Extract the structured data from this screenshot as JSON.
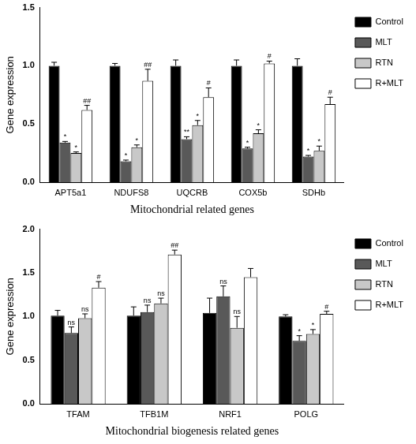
{
  "chart_data": [
    {
      "type": "bar",
      "y_label": "Gene expression",
      "x_label": "Mitochondrial related genes",
      "categories": [
        "APT5a1",
        "NDUFS8",
        "UQCRB",
        "COX5b",
        "SDHb"
      ],
      "series": [
        {
          "name": "Control",
          "color": "#000000",
          "values": [
            1.0,
            1.0,
            1.0,
            1.0,
            1.0
          ],
          "errors": [
            0.03,
            0.02,
            0.05,
            0.05,
            0.06
          ],
          "annotations": [
            null,
            null,
            null,
            null,
            null
          ]
        },
        {
          "name": "MLT",
          "color": "#595959",
          "values": [
            0.34,
            0.18,
            0.37,
            0.29,
            0.22
          ],
          "errors": [
            0.01,
            0.01,
            0.02,
            0.01,
            0.01
          ],
          "annotations": [
            "*",
            "*",
            "**",
            "*",
            "*"
          ]
        },
        {
          "name": "RTN",
          "color": "#c8c8c8",
          "values": [
            0.25,
            0.3,
            0.49,
            0.42,
            0.27
          ],
          "errors": [
            0.01,
            0.02,
            0.04,
            0.03,
            0.04
          ],
          "annotations": [
            "*",
            "*",
            "*",
            "*",
            "*"
          ]
        },
        {
          "name": "R+MLT",
          "color": "#ffffff",
          "values": [
            0.62,
            0.87,
            0.73,
            1.02,
            0.67
          ],
          "errors": [
            0.04,
            0.1,
            0.08,
            0.02,
            0.06
          ],
          "annotations": [
            "##",
            "##",
            "#",
            "#",
            "#"
          ]
        }
      ],
      "ylim": [
        0,
        1.5
      ],
      "yticks": [
        {
          "value": 0,
          "label": "0.0"
        },
        {
          "value": 0.5,
          "label": "0.5"
        },
        {
          "value": 1,
          "label": "1.0"
        },
        {
          "value": 1.5,
          "label": "1.5"
        }
      ],
      "grid": false,
      "legend": "right"
    },
    {
      "type": "bar",
      "y_label": "Gene expression",
      "x_label": "Mitochondrial biogenesis related genes",
      "categories": [
        "TFAM",
        "TFB1M",
        "NRF1",
        "POLG"
      ],
      "series": [
        {
          "name": "Control",
          "color": "#000000",
          "values": [
            1.01,
            1.01,
            1.04,
            1.0
          ],
          "errors": [
            0.06,
            0.1,
            0.17,
            0.02
          ],
          "annotations": [
            null,
            null,
            null,
            null
          ]
        },
        {
          "name": "MLT",
          "color": "#595959",
          "values": [
            0.81,
            1.05,
            1.23,
            0.72
          ],
          "errors": [
            0.07,
            0.08,
            0.12,
            0.06
          ],
          "annotations": [
            "ns",
            "ns",
            "ns",
            "*"
          ]
        },
        {
          "name": "RTN",
          "color": "#c8c8c8",
          "values": [
            0.98,
            1.15,
            0.87,
            0.8
          ],
          "errors": [
            0.05,
            0.06,
            0.13,
            0.05
          ],
          "annotations": [
            "ns",
            "ns",
            "ns",
            "*"
          ]
        },
        {
          "name": "R+MLT",
          "color": "#ffffff",
          "values": [
            1.33,
            1.71,
            1.45,
            1.03
          ],
          "errors": [
            0.07,
            0.05,
            0.1,
            0.03
          ],
          "annotations": [
            "#",
            "##",
            null,
            "#"
          ]
        }
      ],
      "ylim": [
        0,
        2
      ],
      "yticks": [
        {
          "value": 0,
          "label": "0.0"
        },
        {
          "value": 0.5,
          "label": "0.5"
        },
        {
          "value": 1,
          "label": "1.0"
        },
        {
          "value": 1.5,
          "label": "1.5"
        },
        {
          "value": 2,
          "label": "2.0"
        }
      ],
      "grid": false,
      "legend": "right"
    }
  ]
}
